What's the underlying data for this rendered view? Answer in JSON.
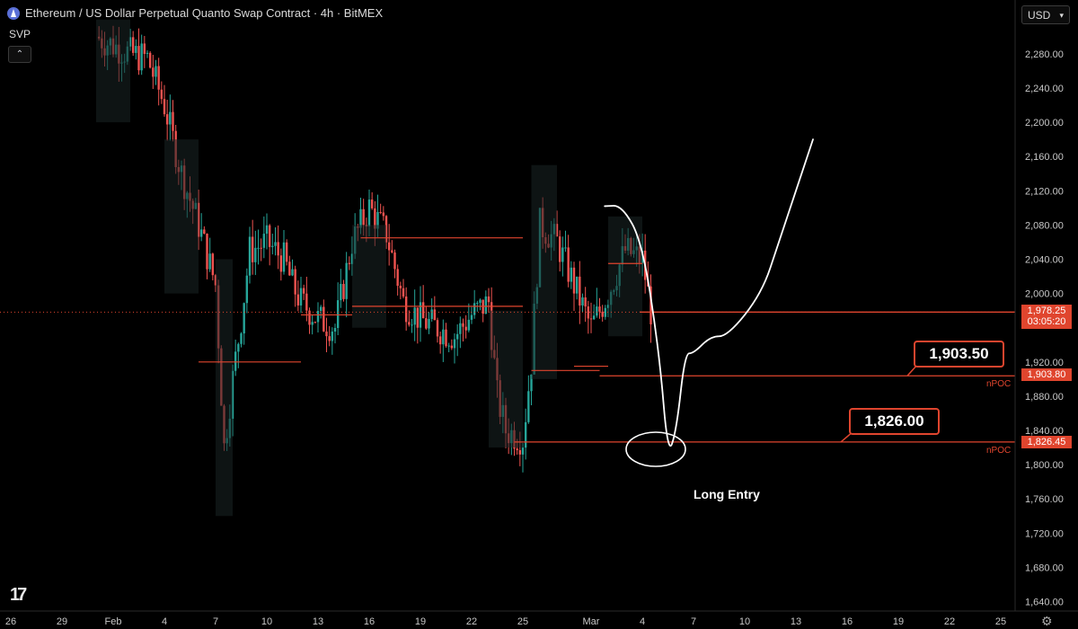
{
  "header": {
    "title": "Ethereum / US Dollar Perpetual Quanto Swap Contract · 4h · BitMEX",
    "indicator": "SVP",
    "currency": "USD"
  },
  "chart_data": {
    "type": "candlestick",
    "ylim": [
      1620,
      2320
    ],
    "y_ticks": [
      "2,280.00",
      "2,240.00",
      "2,200.00",
      "2,160.00",
      "2,120.00",
      "2,080.00",
      "2,040.00",
      "2,000.00",
      "1,920.00",
      "1,880.00",
      "1,840.00",
      "1,800.00",
      "1,760.00",
      "1,720.00",
      "1,680.00",
      "1,640.00"
    ],
    "y_tick_values": [
      2280,
      2240,
      2200,
      2160,
      2120,
      2080,
      2040,
      2000,
      1920,
      1880,
      1840,
      1800,
      1760,
      1720,
      1680,
      1640
    ],
    "x_ticks": [
      "26",
      "29",
      "Feb",
      "4",
      "7",
      "10",
      "13",
      "16",
      "19",
      "22",
      "25",
      "Mar",
      "4",
      "7",
      "10",
      "13",
      "16",
      "19",
      "22",
      "25"
    ],
    "x_tick_days": [
      -6,
      -3,
      0,
      3,
      6,
      9,
      12,
      15,
      18,
      21,
      24,
      28,
      31,
      34,
      37,
      40,
      43,
      46,
      49,
      52
    ],
    "price_path": [
      [
        -1,
        2300
      ],
      [
        0,
        2290
      ],
      [
        1,
        2280
      ],
      [
        2,
        2275
      ],
      [
        3,
        2220
      ],
      [
        4,
        2140
      ],
      [
        5,
        2080
      ],
      [
        6,
        2010
      ],
      [
        6.5,
        1820
      ],
      [
        7,
        1900
      ],
      [
        7.5,
        1970
      ],
      [
        8,
        2050
      ],
      [
        9,
        2060
      ],
      [
        10,
        2040
      ],
      [
        10.5,
        2010
      ],
      [
        11,
        1990
      ],
      [
        12,
        1970
      ],
      [
        13,
        1960
      ],
      [
        14,
        2060
      ],
      [
        15,
        2100
      ],
      [
        16,
        2070
      ],
      [
        17,
        1990
      ],
      [
        18,
        1970
      ],
      [
        19,
        1960
      ],
      [
        20,
        1950
      ],
      [
        21,
        1975
      ],
      [
        22,
        1990
      ],
      [
        22.5,
        1880
      ],
      [
        23,
        1840
      ],
      [
        24,
        1830
      ],
      [
        24.5,
        1920
      ],
      [
        25,
        2080
      ],
      [
        26,
        2060
      ],
      [
        27,
        2010
      ],
      [
        28,
        1960
      ],
      [
        29,
        2000
      ],
      [
        30,
        2050
      ],
      [
        31,
        2040
      ],
      [
        31.5,
        1980
      ]
    ],
    "current_price": "1,978.25",
    "countdown": "03:05:20",
    "levels": [
      {
        "price": 1903.8,
        "tag": "1,903.80",
        "label": "nPOC",
        "callout": "1,903.50"
      },
      {
        "price": 1826.45,
        "tag": "1,826.45",
        "label": "nPOC",
        "callout": "1,826.00"
      }
    ],
    "projection": [
      [
        28.8,
        2102
      ],
      [
        29.8,
        2103
      ],
      [
        31,
        2060
      ],
      [
        32,
        1930
      ],
      [
        32.5,
        1810
      ],
      [
        33,
        1840
      ],
      [
        33.5,
        1930
      ],
      [
        34,
        1930
      ],
      [
        35,
        1950
      ],
      [
        36,
        1950
      ],
      [
        38,
        2000
      ],
      [
        39,
        2060
      ],
      [
        40,
        2120
      ],
      [
        41,
        2180
      ]
    ],
    "annotation": "Long Entry",
    "colors": {
      "up": "#26a69a",
      "down": "#ef5350",
      "level": "#e0452e",
      "bg": "#000000",
      "projection": "#ffffff"
    }
  }
}
